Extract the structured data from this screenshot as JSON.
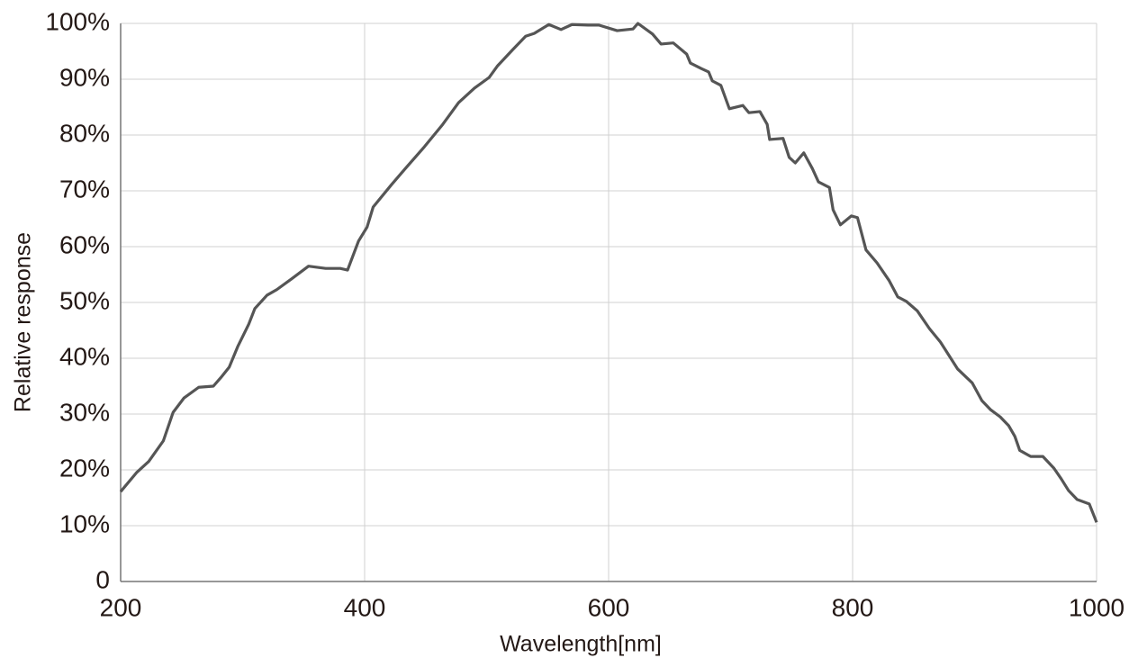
{
  "chart_data": {
    "type": "line",
    "x_label": "Wavelength[nm]",
    "y_label": "Relative response",
    "xlim": [
      200,
      1000
    ],
    "xticks": [
      200,
      400,
      600,
      800,
      1000
    ],
    "ylim": [
      0,
      100
    ],
    "yticks": [
      0,
      {
        "value": 10,
        "label": "10%"
      },
      {
        "value": 20,
        "label": "20%"
      },
      {
        "value": 30,
        "label": "30%"
      },
      {
        "value": 40,
        "label": "40%"
      },
      {
        "value": 50,
        "label": "50%"
      },
      {
        "value": 60,
        "label": "60%"
      },
      {
        "value": 70,
        "label": "70%"
      },
      {
        "value": 80,
        "label": "80%"
      },
      {
        "value": 90,
        "label": "90%"
      },
      {
        "value": 100,
        "label": "100%"
      }
    ],
    "grid": true,
    "x": [
      200,
      213,
      223,
      235,
      243,
      252,
      264,
      276,
      282,
      289,
      296,
      305,
      310,
      320,
      328,
      340,
      354,
      368,
      380,
      386,
      395,
      402,
      407,
      422,
      433,
      449,
      464,
      477,
      490,
      502,
      509,
      521,
      532,
      539,
      551,
      561,
      570,
      583,
      592,
      607,
      620,
      624,
      636,
      643,
      653,
      664,
      667,
      676,
      682,
      685,
      692,
      699,
      710,
      715,
      724,
      730,
      732,
      743,
      748,
      753,
      760,
      767,
      772,
      781,
      784,
      790,
      799,
      804,
      811,
      820,
      830,
      837,
      844,
      853,
      863,
      872,
      879,
      886,
      898,
      906,
      913,
      921,
      928,
      933,
      937,
      946,
      956,
      965,
      971,
      977,
      984,
      994,
      1000
    ],
    "series": [
      {
        "color": "#555555",
        "values": [
          16.1,
          19.5,
          21.5,
          25.2,
          30.3,
          32.9,
          34.8,
          35.0,
          36.5,
          38.4,
          42.1,
          46.1,
          48.9,
          51.3,
          52.3,
          54.2,
          56.5,
          56.1,
          56.1,
          55.8,
          61.0,
          63.5,
          67.1,
          71.1,
          73.9,
          77.9,
          81.9,
          85.8,
          88.4,
          90.3,
          92.4,
          95.2,
          97.7,
          98.2,
          99.8,
          98.9,
          99.8,
          99.7,
          99.7,
          98.7,
          99.0,
          100,
          98.1,
          96.3,
          96.5,
          94.5,
          92.9,
          91.9,
          91.3,
          89.7,
          88.9,
          84.7,
          85.3,
          84.0,
          84.2,
          81.9,
          79.2,
          79.4,
          76.0,
          75.0,
          76.8,
          74.0,
          71.6,
          70.6,
          66.6,
          63.9,
          65.5,
          65.2,
          59.4,
          57.1,
          53.9,
          51.0,
          50.2,
          48.5,
          45.3,
          42.9,
          40.5,
          38.1,
          35.6,
          32.4,
          30.8,
          29.5,
          27.9,
          26.0,
          23.5,
          22.4,
          22.4,
          20.3,
          18.4,
          16.3,
          14.7,
          13.9,
          10.6
        ]
      }
    ]
  }
}
